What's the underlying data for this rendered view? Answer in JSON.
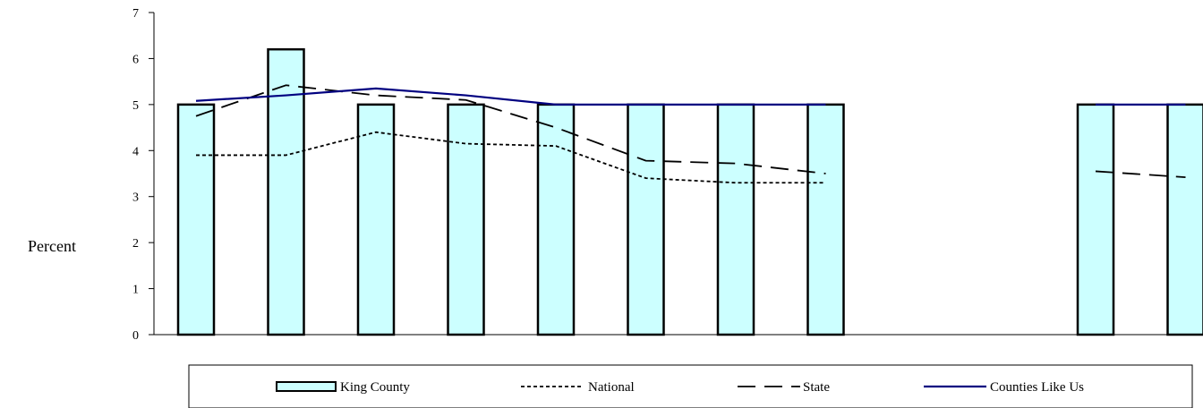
{
  "chart_data": {
    "type": "bar",
    "title": "",
    "xlabel": "",
    "ylabel": "Percent",
    "ylim": [
      0,
      7
    ],
    "yticks": [
      0,
      1,
      2,
      3,
      4,
      5,
      6,
      7
    ],
    "categories": [
      "",
      "",
      "",
      "",
      "",
      "",
      "",
      "",
      "",
      "",
      "",
      ""
    ],
    "series": [
      {
        "name": "King County",
        "kind": "bar",
        "color": "#ccffff",
        "values": [
          5,
          6.2,
          5,
          5,
          5,
          5,
          5,
          5,
          null,
          null,
          5,
          5
        ]
      },
      {
        "name": "National",
        "kind": "line",
        "style": "dotted",
        "color": "#000000",
        "values": [
          3.9,
          3.9,
          4.4,
          4.15,
          4.1,
          3.4,
          3.3,
          3.3,
          null,
          null,
          null,
          null
        ]
      },
      {
        "name": "State",
        "kind": "line",
        "style": "dashed",
        "color": "#000000",
        "values": [
          4.75,
          5.42,
          5.2,
          5.1,
          4.5,
          3.78,
          3.72,
          3.5,
          null,
          null,
          3.55,
          3.42
        ]
      },
      {
        "name": "Counties Like Us",
        "kind": "line",
        "style": "solid",
        "color": "#000080",
        "values": [
          5.08,
          5.2,
          5.35,
          5.2,
          5,
          5,
          5,
          5,
          null,
          null,
          5,
          5
        ]
      }
    ],
    "grid": false,
    "legend_position": "bottom"
  }
}
